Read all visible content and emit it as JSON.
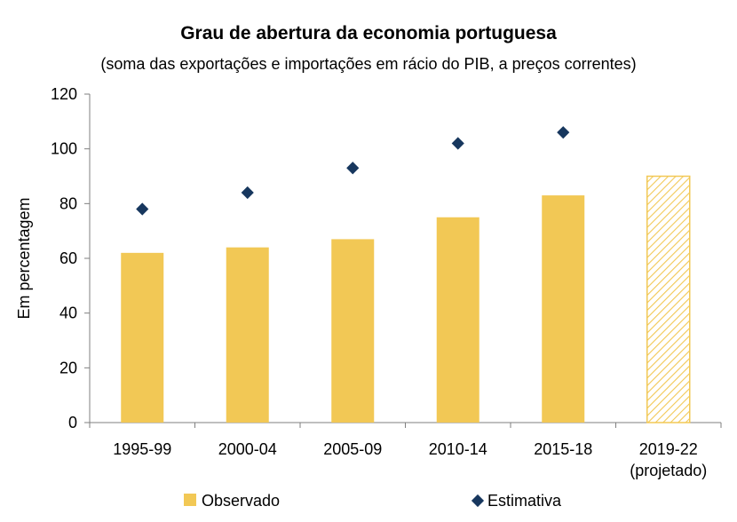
{
  "chart_data": {
    "type": "bar",
    "title": "Grau de abertura da economia portuguesa",
    "subtitle": "(soma das exportações e importações em rácio do PIB, a preços correntes)",
    "ylabel": "Em percentagem",
    "xlabel": "",
    "ylim": [
      0,
      120
    ],
    "yticks": [
      "0",
      "20",
      "40",
      "60",
      "80",
      "100",
      "120"
    ],
    "categories": [
      [
        "1995-99"
      ],
      [
        "2000-04"
      ],
      [
        "2005-09"
      ],
      [
        "2010-14"
      ],
      [
        "2015-18"
      ],
      [
        "2019-22",
        "(projetado)"
      ]
    ],
    "series": [
      {
        "name": "Observado",
        "type": "bar",
        "color": "#F2C855",
        "values": [
          62,
          64,
          67,
          75,
          83,
          90
        ],
        "hatched": [
          false,
          false,
          false,
          false,
          false,
          true
        ]
      },
      {
        "name": "Estimativa",
        "type": "scatter",
        "marker": "diamond",
        "color": "#17375E",
        "values": [
          78,
          84,
          93,
          102,
          106,
          null
        ]
      }
    ],
    "legend_position": "bottom",
    "grid": false
  }
}
